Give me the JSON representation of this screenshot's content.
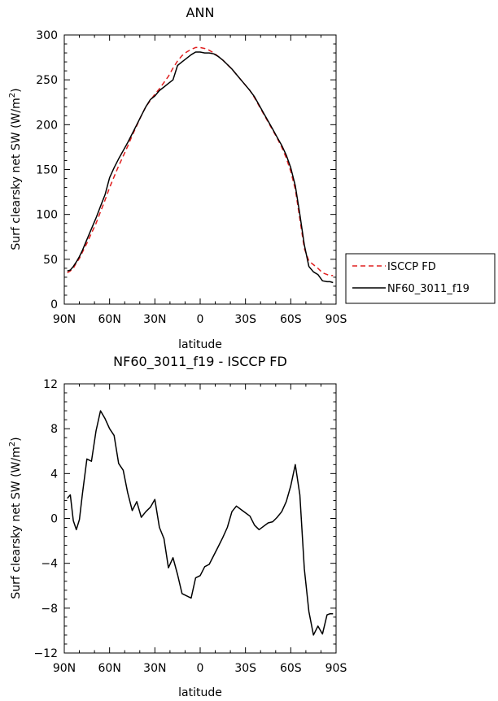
{
  "chart_data": [
    {
      "type": "line",
      "title": "ANN",
      "xlabel": "latitude",
      "ylabel": "Surf clearsky net SW (W/m²)",
      "xlim": [
        90,
        -90
      ],
      "ylim": [
        0,
        300
      ],
      "xticks": [
        90,
        60,
        30,
        0,
        -30,
        -60,
        -90
      ],
      "xtick_labels": [
        "90N",
        "60N",
        "30N",
        "0",
        "30S",
        "60S",
        "90S"
      ],
      "yticks": [
        0,
        50,
        100,
        150,
        200,
        250,
        300
      ],
      "ytick_labels": [
        "0",
        "50",
        "100",
        "150",
        "200",
        "250",
        "300"
      ],
      "legend": "right-outside",
      "grid": false,
      "series": [
        {
          "name": "ISCCP FD",
          "color": "#e02020",
          "dash": "dashed",
          "x": [
            88,
            86,
            84,
            82,
            80,
            78,
            75,
            72,
            69,
            66,
            63,
            60,
            57,
            54,
            51,
            48,
            45,
            42,
            39,
            36,
            33,
            30,
            27,
            24,
            21,
            18,
            15,
            12,
            9,
            6,
            3,
            0,
            -3,
            -6,
            -9,
            -12,
            -15,
            -18,
            -21,
            -24,
            -27,
            -30,
            -33,
            -36,
            -39,
            -42,
            -45,
            -48,
            -51,
            -54,
            -57,
            -60,
            -63,
            -66,
            -69,
            -72,
            -75,
            -78,
            -81,
            -84,
            -86,
            -88
          ],
          "y": [
            35,
            37,
            40,
            46,
            51,
            58,
            68,
            79,
            90,
            103,
            116,
            130,
            142,
            154,
            165,
            176,
            188,
            199,
            210,
            220,
            227,
            234,
            240,
            247,
            254,
            263,
            271,
            277,
            281,
            284,
            286,
            286,
            285,
            283,
            280,
            276,
            272,
            267,
            262,
            256,
            250,
            244,
            238,
            230,
            221,
            212,
            203,
            194,
            185,
            175,
            163,
            148,
            128,
            95,
            62,
            48,
            44,
            40,
            35,
            33,
            32,
            32
          ]
        },
        {
          "name": "NF60_3011_f19",
          "color": "#000000",
          "dash": "solid",
          "x": [
            88,
            86,
            84,
            82,
            80,
            78,
            75,
            72,
            69,
            66,
            63,
            60,
            57,
            54,
            51,
            48,
            45,
            42,
            39,
            36,
            33,
            30,
            27,
            24,
            21,
            18,
            15,
            12,
            9,
            6,
            3,
            0,
            -3,
            -6,
            -9,
            -12,
            -15,
            -18,
            -21,
            -24,
            -27,
            -30,
            -33,
            -36,
            -39,
            -42,
            -45,
            -48,
            -51,
            -54,
            -57,
            -60,
            -63,
            -66,
            -69,
            -72,
            -75,
            -78,
            -81,
            -84,
            -86,
            -88
          ],
          "y": [
            37,
            38,
            42,
            47,
            53,
            60,
            72,
            84,
            96,
            109,
            122,
            141,
            152,
            162,
            171,
            180,
            190,
            200,
            210,
            220,
            228,
            232,
            238,
            242,
            246,
            250,
            266,
            270,
            274,
            278,
            281,
            281,
            280,
            280,
            279,
            276,
            272,
            267,
            262,
            256,
            250,
            244,
            238,
            231,
            222,
            213,
            204,
            195,
            186,
            177,
            166,
            152,
            132,
            100,
            66,
            42,
            36,
            33,
            26,
            25,
            25,
            24
          ]
        }
      ]
    },
    {
      "type": "line",
      "title": "NF60_3011_f19 - ISCCP FD",
      "xlabel": "latitude",
      "ylabel": "Surf clearsky net SW (W/m²)",
      "xlim": [
        90,
        -90
      ],
      "ylim": [
        -12,
        12
      ],
      "xticks": [
        90,
        60,
        30,
        0,
        -30,
        -60,
        -90
      ],
      "xtick_labels": [
        "90N",
        "60N",
        "30N",
        "0",
        "30S",
        "60S",
        "90S"
      ],
      "yticks": [
        -12,
        -8,
        -4,
        0,
        4,
        8,
        12
      ],
      "ytick_labels": [
        "−12",
        "−8",
        "−4",
        "0",
        "4",
        "8",
        "12"
      ],
      "grid": false,
      "series": [
        {
          "name": "",
          "color": "#000000",
          "dash": "solid",
          "x": [
            88,
            86,
            84,
            82,
            80,
            78,
            75,
            72,
            69,
            66,
            63,
            60,
            57,
            54,
            51,
            48,
            45,
            42,
            39,
            36,
            33,
            30,
            27,
            24,
            21,
            18,
            15,
            12,
            9,
            6,
            3,
            0,
            -3,
            -6,
            -9,
            -12,
            -15,
            -18,
            -21,
            -24,
            -27,
            -30,
            -33,
            -36,
            -39,
            -42,
            -45,
            -48,
            -51,
            -54,
            -57,
            -60,
            -63,
            -66,
            -69,
            -72,
            -75,
            -78,
            -81,
            -84,
            -86,
            -88
          ],
          "y": [
            1.8,
            2.1,
            -0.2,
            -1.0,
            -0.1,
            2.2,
            5.3,
            5.1,
            7.8,
            9.6,
            8.9,
            8.0,
            7.4,
            4.9,
            4.3,
            2.3,
            0.7,
            1.5,
            0.1,
            0.6,
            1.0,
            1.7,
            -0.8,
            -1.8,
            -4.4,
            -3.5,
            -5.0,
            -6.7,
            -6.9,
            -7.1,
            -5.3,
            -5.1,
            -4.3,
            -4.1,
            -3.3,
            -2.5,
            -1.7,
            -0.8,
            0.6,
            1.1,
            0.8,
            0.5,
            0.2,
            -0.6,
            -1.0,
            -0.7,
            -0.4,
            -0.3,
            0.1,
            0.6,
            1.5,
            2.9,
            4.8,
            2.1,
            -4.5,
            -8.3,
            -10.4,
            -9.6,
            -10.3,
            -8.6,
            -8.5,
            -8.5
          ]
        }
      ]
    }
  ]
}
